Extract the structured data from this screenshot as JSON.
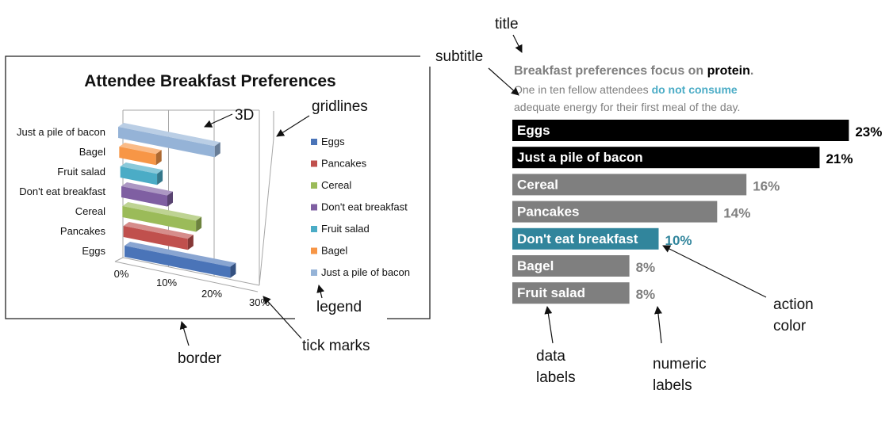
{
  "annotations": {
    "title": "title",
    "subtitle": "subtitle",
    "three_d": "3D",
    "gridlines": "gridlines",
    "legend": "legend",
    "tick_marks": "tick marks",
    "border": "border",
    "data_labels": [
      "data",
      "labels"
    ],
    "numeric_labels": [
      "numeric",
      "labels"
    ],
    "action_color": [
      "action",
      "color"
    ]
  },
  "chart_data": [
    {
      "type": "bar",
      "orientation": "horizontal",
      "style": "3d",
      "title": "Attendee Breakfast Preferences",
      "categories": [
        "Just a pile of bacon",
        "Bagel",
        "Fruit salad",
        "Don't eat breakfast",
        "Cereal",
        "Pancakes",
        "Eggs"
      ],
      "values": [
        21,
        8,
        8,
        10,
        16,
        14,
        23
      ],
      "x_ticks": [
        "0%",
        "10%",
        "20%",
        "30%"
      ],
      "xlim": [
        0,
        30
      ],
      "grid": true,
      "legend_position": "right",
      "legend": [
        "Eggs",
        "Pancakes",
        "Cereal",
        "Don't eat breakfast",
        "Fruit salad",
        "Bagel",
        "Just a pile of bacon"
      ],
      "colors": {
        "Eggs": "#4a74b8",
        "Pancakes": "#c0504d",
        "Cereal": "#9bbb59",
        "Don't eat breakfast": "#7f5fa2",
        "Fruit salad": "#4bacc6",
        "Bagel": "#f79646",
        "Just a pile of bacon": "#95b3d7"
      }
    },
    {
      "type": "bar",
      "orientation": "horizontal",
      "title_parts": [
        "Breakfast preferences focus on ",
        "protein",
        "."
      ],
      "subtitle_line1": [
        "One in ten fellow attendees ",
        "do not consume"
      ],
      "subtitle_line2": "adequate energy for their first meal of the day.",
      "categories": [
        "Eggs",
        "Just a pile of bacon",
        "Cereal",
        "Pancakes",
        "Don't eat breakfast",
        "Bagel",
        "Fruit salad"
      ],
      "values": [
        23,
        21,
        16,
        14,
        10,
        8,
        8
      ],
      "value_labels": [
        "23%",
        "21%",
        "16%",
        "14%",
        "10%",
        "8%",
        "8%"
      ],
      "colors": [
        "#000000",
        "#000000",
        "#7f7f7f",
        "#7f7f7f",
        "#31859c",
        "#7f7f7f",
        "#7f7f7f"
      ],
      "label_colors": [
        "#000000",
        "#000000",
        "#7f7f7f",
        "#7f7f7f",
        "#31859c",
        "#7f7f7f",
        "#7f7f7f"
      ],
      "accent_color": "#4bacc6"
    }
  ]
}
